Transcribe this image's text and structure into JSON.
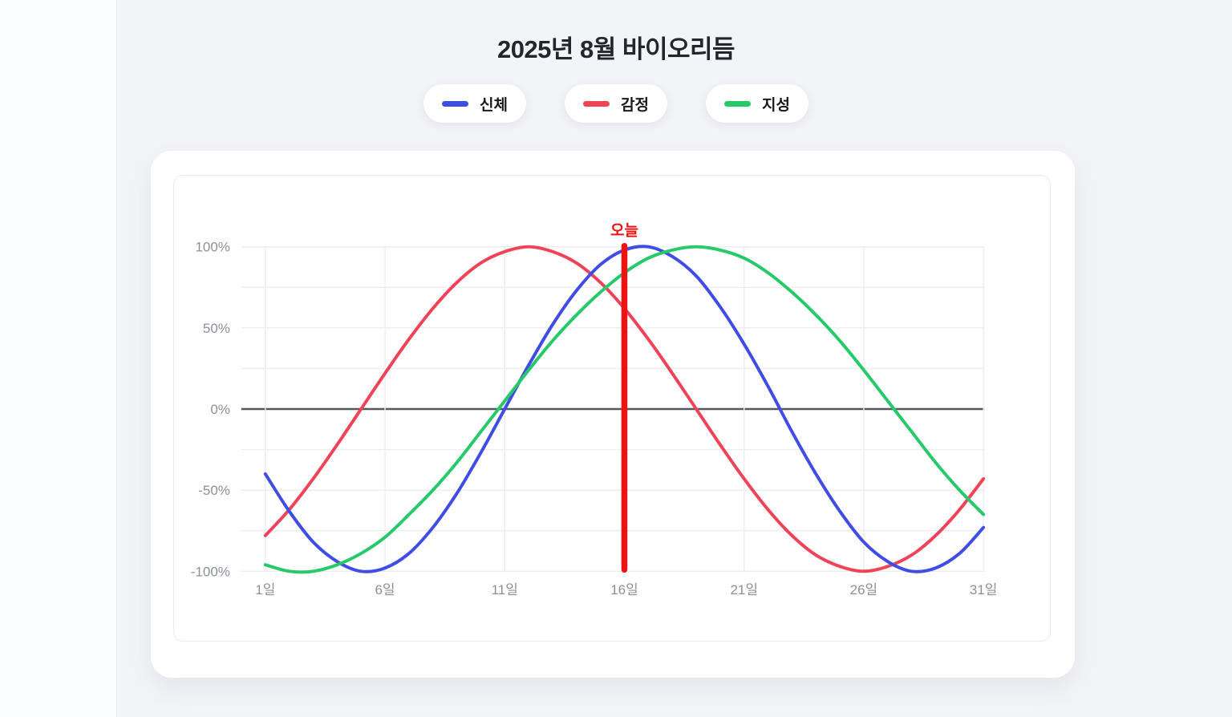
{
  "page": {
    "background_main": "#f2f4f7",
    "background_left_strip": "#fbfcfd"
  },
  "header": {
    "title": "2025년 8월 바이오리듬"
  },
  "legend": {
    "items": [
      {
        "id": "physical",
        "label": "신체",
        "color": "#3f4de4"
      },
      {
        "id": "emotional",
        "label": "감정",
        "color": "#ef4458"
      },
      {
        "id": "intellectual",
        "label": "지성",
        "color": "#27c96a"
      }
    ]
  },
  "chart_data": {
    "type": "line",
    "title": "2025년 8월 바이오리듬",
    "x": [
      1,
      2,
      3,
      4,
      5,
      6,
      7,
      8,
      9,
      10,
      11,
      12,
      13,
      14,
      15,
      16,
      17,
      18,
      19,
      20,
      21,
      22,
      23,
      24,
      25,
      26,
      27,
      28,
      29,
      30,
      31
    ],
    "x_tick_labels": [
      {
        "day": 1,
        "label": "1일"
      },
      {
        "day": 6,
        "label": "6일"
      },
      {
        "day": 11,
        "label": "11일"
      },
      {
        "day": 16,
        "label": "16일"
      },
      {
        "day": 21,
        "label": "21일"
      },
      {
        "day": 26,
        "label": "26일"
      },
      {
        "day": 31,
        "label": "31일"
      }
    ],
    "y_axis": {
      "min": -100,
      "max": 100,
      "grid_step": 25,
      "tick_labels": [
        {
          "value": 100,
          "label": "100%"
        },
        {
          "value": 50,
          "label": "50%"
        },
        {
          "value": 0,
          "label": "0%"
        },
        {
          "value": -50,
          "label": "-50%"
        },
        {
          "value": -100,
          "label": "-100%"
        }
      ]
    },
    "series": [
      {
        "id": "emotional",
        "name": "감정",
        "color": "#ef4458",
        "values": [
          -78,
          -62,
          -43,
          -22,
          0,
          22,
          43,
          62,
          78,
          90,
          97,
          100,
          97,
          90,
          78,
          62,
          43,
          22,
          0,
          -22,
          -43,
          -62,
          -78,
          -90,
          -97,
          -100,
          -97,
          -90,
          -78,
          -62,
          -43
        ]
      },
      {
        "id": "physical",
        "name": "신체",
        "color": "#3f4de4",
        "values": [
          -40,
          -63,
          -82,
          -94,
          -100,
          -98,
          -89,
          -73,
          -52,
          -27,
          0,
          27,
          52,
          73,
          89,
          98,
          100,
          94,
          82,
          63,
          40,
          14,
          -14,
          -40,
          -63,
          -82,
          -94,
          -100,
          -98,
          -89,
          -73
        ]
      },
      {
        "id": "intellectual",
        "name": "지성",
        "color": "#27c96a",
        "values": [
          -96,
          -100,
          -100,
          -96,
          -89,
          -79,
          -65,
          -50,
          -33,
          -14,
          5,
          24,
          42,
          58,
          72,
          84,
          93,
          98,
          100,
          98,
          93,
          84,
          72,
          58,
          42,
          24,
          5,
          -14,
          -33,
          -50,
          -65
        ]
      }
    ],
    "today_marker": {
      "day": 16,
      "label": "오늘",
      "color": "#ee1212"
    },
    "style": {
      "grid_color": "#ebedf0",
      "zero_line_color": "#55595f",
      "tick_text_color": "#8b9198",
      "grid_on": true,
      "legend_position": "top"
    }
  }
}
